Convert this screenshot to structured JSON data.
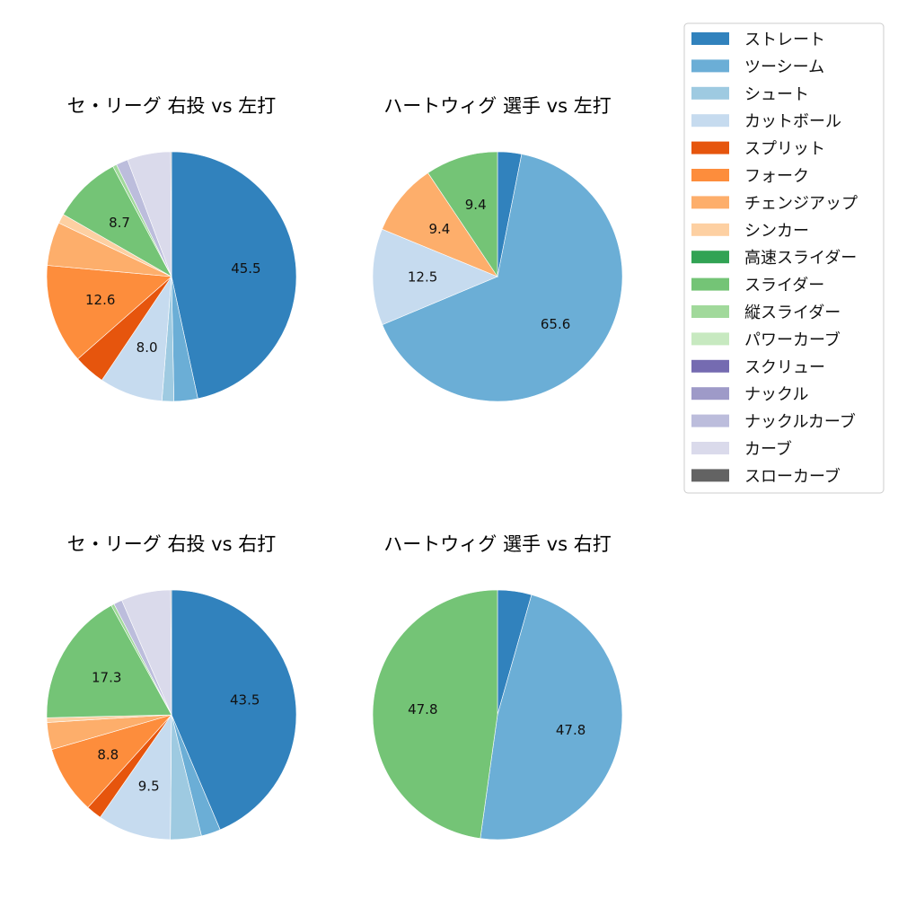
{
  "legend": {
    "entries": [
      {
        "label": "ストレート",
        "color": "#3182bd"
      },
      {
        "label": "ツーシーム",
        "color": "#6baed6"
      },
      {
        "label": "シュート",
        "color": "#9ecae1"
      },
      {
        "label": "カットボール",
        "color": "#c6dbef"
      },
      {
        "label": "スプリット",
        "color": "#e6550d"
      },
      {
        "label": "フォーク",
        "color": "#fd8d3c"
      },
      {
        "label": "チェンジアップ",
        "color": "#fdae6b"
      },
      {
        "label": "シンカー",
        "color": "#fdd0a2"
      },
      {
        "label": "高速スライダー",
        "color": "#31a354"
      },
      {
        "label": "スライダー",
        "color": "#74c476"
      },
      {
        "label": "縦スライダー",
        "color": "#a1d99b"
      },
      {
        "label": "パワーカーブ",
        "color": "#c7e9c0"
      },
      {
        "label": "スクリュー",
        "color": "#756bb1"
      },
      {
        "label": "ナックル",
        "color": "#9e9ac8"
      },
      {
        "label": "ナックルカーブ",
        "color": "#bcbddc"
      },
      {
        "label": "カーブ",
        "color": "#dadaeb"
      },
      {
        "label": "スローカーブ",
        "color": "#636363"
      }
    ]
  },
  "chart_data": [
    {
      "type": "pie",
      "title": "セ・リーグ 右投 vs 左打",
      "slices": [
        {
          "name": "ストレート",
          "value": 45.5,
          "label": "45.5"
        },
        {
          "name": "ツーシーム",
          "value": 3.0
        },
        {
          "name": "シュート",
          "value": 1.5
        },
        {
          "name": "カットボール",
          "value": 8.0,
          "label": "8.0"
        },
        {
          "name": "スプリット",
          "value": 4.0
        },
        {
          "name": "フォーク",
          "value": 12.6,
          "label": "12.6"
        },
        {
          "name": "チェンジアップ",
          "value": 5.5
        },
        {
          "name": "シンカー",
          "value": 1.2
        },
        {
          "name": "スライダー",
          "value": 8.7,
          "label": "8.7"
        },
        {
          "name": "縦スライダー",
          "value": 0.5
        },
        {
          "name": "ナックルカーブ",
          "value": 1.5
        },
        {
          "name": "カーブ",
          "value": 5.5
        },
        {
          "name": "スローカーブ",
          "value": 0.1
        }
      ]
    },
    {
      "type": "pie",
      "title": "ハートウィグ 選手 vs 左打",
      "slices": [
        {
          "name": "ストレート",
          "value": 3.1
        },
        {
          "name": "ツーシーム",
          "value": 65.6,
          "label": "65.6"
        },
        {
          "name": "カットボール",
          "value": 12.5,
          "label": "12.5"
        },
        {
          "name": "チェンジアップ",
          "value": 9.4,
          "label": "9.4"
        },
        {
          "name": "スライダー",
          "value": 9.4,
          "label": "9.4"
        }
      ]
    },
    {
      "type": "pie",
      "title": "セ・リーグ 右投 vs 右打",
      "slices": [
        {
          "name": "ストレート",
          "value": 43.5,
          "label": "43.5"
        },
        {
          "name": "ツーシーム",
          "value": 2.5
        },
        {
          "name": "シュート",
          "value": 4.0
        },
        {
          "name": "カットボール",
          "value": 9.5,
          "label": "9.5"
        },
        {
          "name": "スプリット",
          "value": 2.0
        },
        {
          "name": "フォーク",
          "value": 8.8,
          "label": "8.8"
        },
        {
          "name": "チェンジアップ",
          "value": 3.5
        },
        {
          "name": "シンカー",
          "value": 0.6
        },
        {
          "name": "スライダー",
          "value": 17.3,
          "label": "17.3"
        },
        {
          "name": "縦スライダー",
          "value": 0.4
        },
        {
          "name": "ナックルカーブ",
          "value": 1.1
        },
        {
          "name": "カーブ",
          "value": 6.4
        },
        {
          "name": "スローカーブ",
          "value": 0.1
        }
      ]
    },
    {
      "type": "pie",
      "title": "ハートウィグ 選手 vs 右打",
      "slices": [
        {
          "name": "ストレート",
          "value": 4.4
        },
        {
          "name": "ツーシーム",
          "value": 47.8,
          "label": "47.8"
        },
        {
          "name": "スライダー",
          "value": 47.8,
          "label": "47.8"
        }
      ]
    }
  ]
}
